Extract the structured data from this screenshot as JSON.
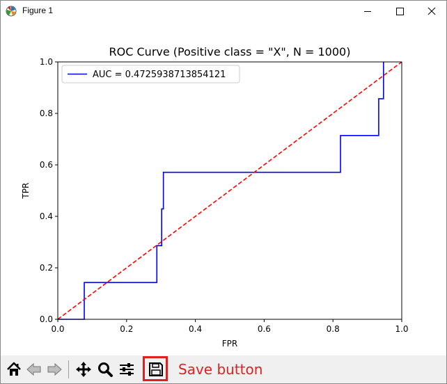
{
  "window": {
    "title": "Figure 1"
  },
  "figure": {
    "chart_data": {
      "type": "line",
      "title": "ROC Curve (Positive class = \"X\", N = 1000)",
      "xlabel": "FPR",
      "ylabel": "TPR",
      "xlim": [
        0.0,
        1.0
      ],
      "ylim": [
        0.0,
        1.0
      ],
      "xticks": [
        "0.0",
        "0.2",
        "0.4",
        "0.6",
        "0.8",
        "1.0"
      ],
      "yticks": [
        "0.0",
        "0.2",
        "0.4",
        "0.6",
        "0.8",
        "1.0"
      ],
      "grid": false,
      "legend_position": "upper-left",
      "series": [
        {
          "name": "AUC = 0.4725938713854121",
          "color": "#0000ff",
          "style": "solid",
          "x": [
            0.0,
            0.077,
            0.077,
            0.288,
            0.288,
            0.302,
            0.302,
            0.307,
            0.307,
            0.822,
            0.822,
            0.933,
            0.933,
            0.947,
            0.947
          ],
          "y": [
            0.0,
            0.0,
            0.143,
            0.143,
            0.286,
            0.286,
            0.429,
            0.429,
            0.571,
            0.571,
            0.714,
            0.714,
            0.857,
            0.857,
            1.0
          ]
        },
        {
          "name": "",
          "color": "#ff0000",
          "style": "dashed",
          "x": [
            0.0,
            1.0
          ],
          "y": [
            0.0,
            1.0
          ]
        }
      ]
    }
  },
  "toolbar": {
    "icons": [
      "home-icon",
      "back-arrow-icon",
      "forward-arrow-icon",
      "pan-move-icon",
      "zoom-magnifier-icon",
      "configure-subplots-icon",
      "save-floppy-icon"
    ],
    "annotation": "Save button",
    "annotation_color": "#e02020"
  }
}
